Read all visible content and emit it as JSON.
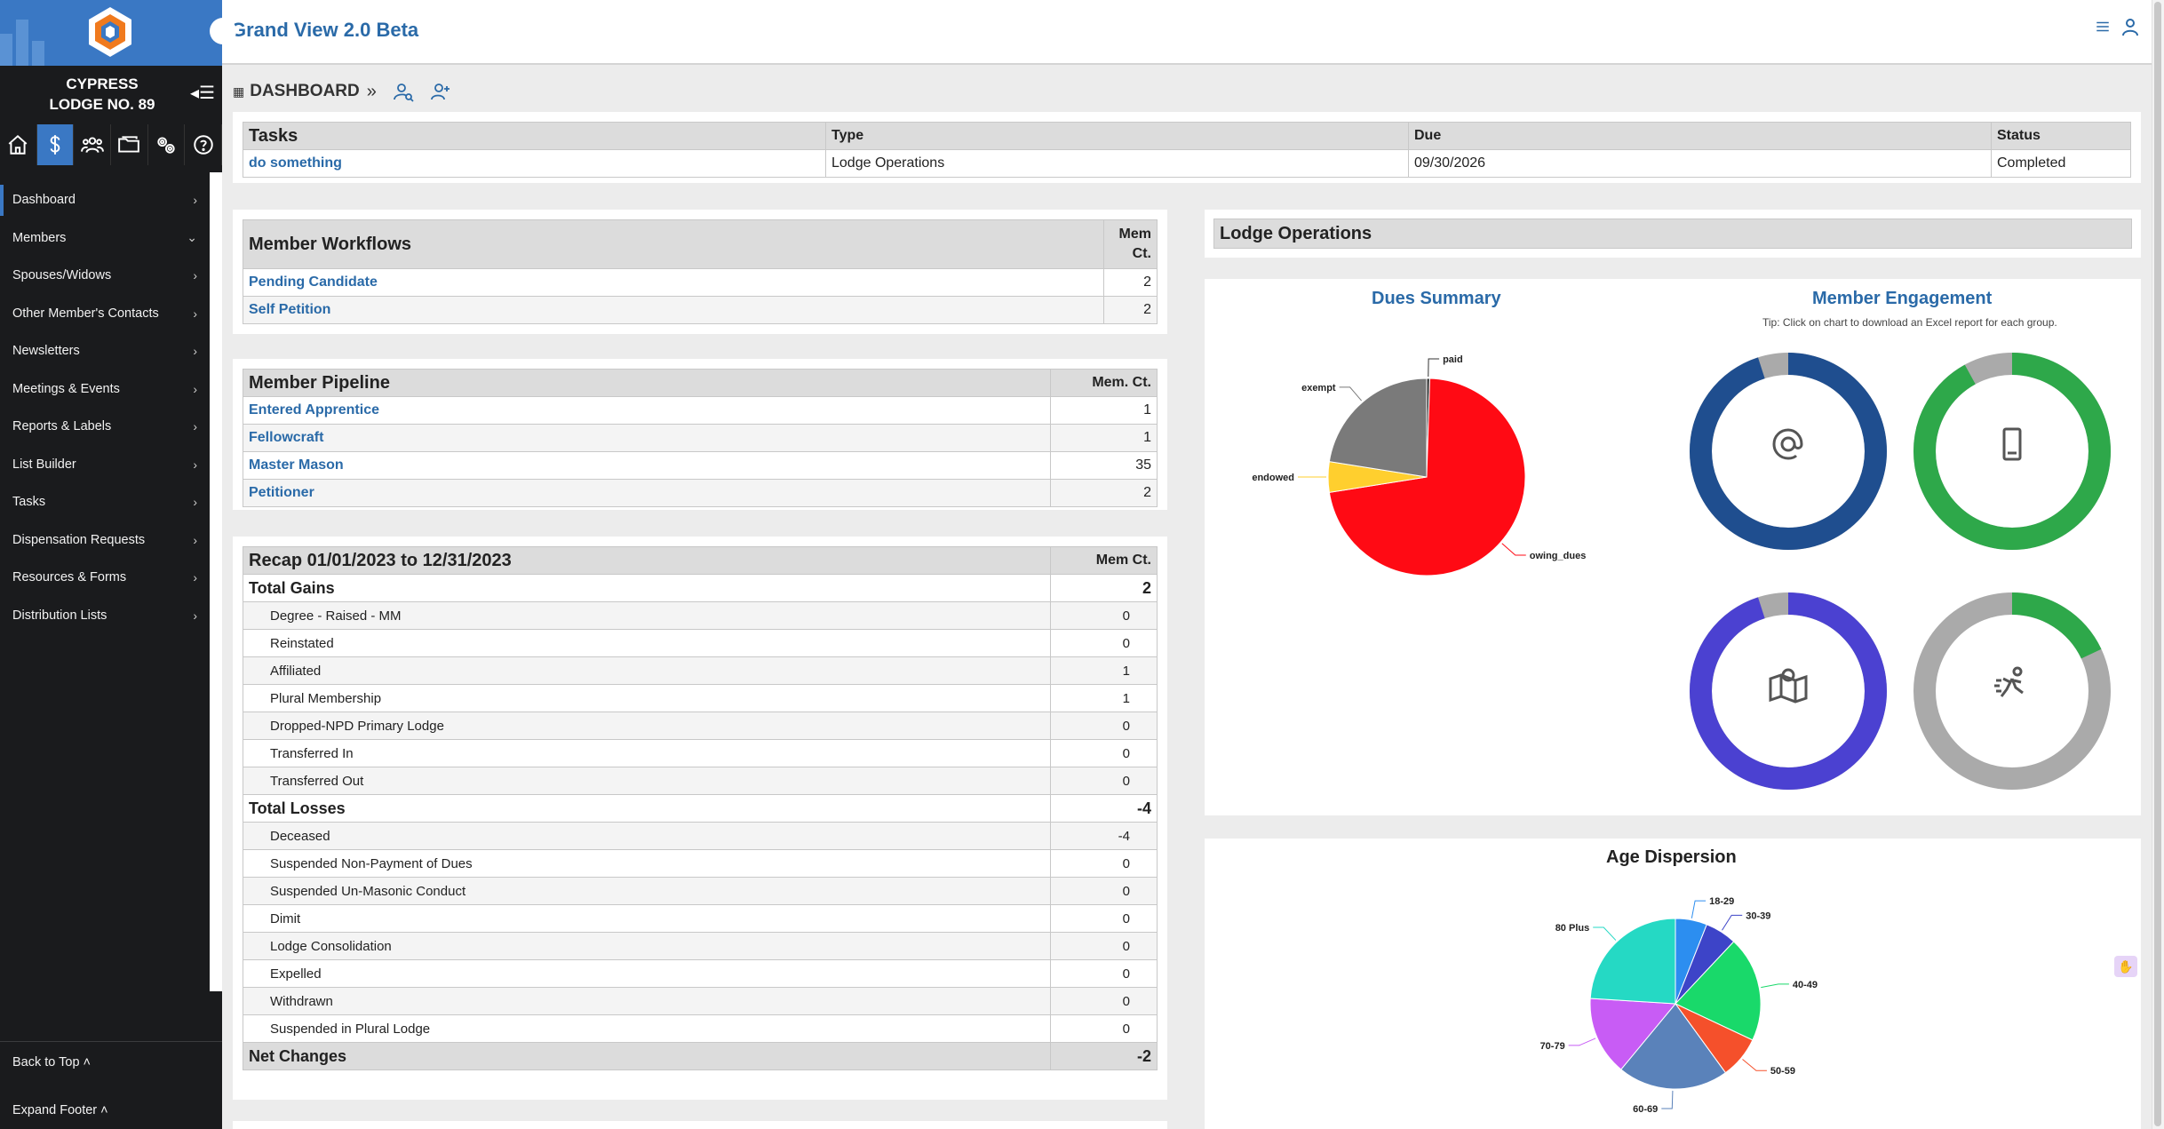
{
  "sidebar": {
    "lodge_name_line1": "CYPRESS",
    "lodge_name_line2": "LODGE NO. 89",
    "icons": [
      "home-icon",
      "dollar-icon",
      "members-icon",
      "folder-icon",
      "settings-icon",
      "help-icon"
    ],
    "nav": [
      {
        "label": "Dashboard",
        "chevron": "›"
      },
      {
        "label": "Members",
        "chevron": "⌄"
      },
      {
        "label": "Spouses/Widows",
        "chevron": "›"
      },
      {
        "label": "Other Member's Contacts",
        "chevron": "›"
      },
      {
        "label": "Newsletters",
        "chevron": "›"
      },
      {
        "label": "Meetings & Events",
        "chevron": "›"
      },
      {
        "label": "Reports & Labels",
        "chevron": "›"
      },
      {
        "label": "List Builder",
        "chevron": "›"
      },
      {
        "label": "Tasks",
        "chevron": "›"
      },
      {
        "label": "Dispensation Requests",
        "chevron": "›"
      },
      {
        "label": "Resources & Forms",
        "chevron": "›"
      },
      {
        "label": "Distribution Lists",
        "chevron": "›"
      }
    ],
    "back_to_top": "Back to Top ˄",
    "expand_footer": "Expand Footer ˄"
  },
  "header": {
    "title": "Grand View 2.0 Beta"
  },
  "breadcrumb": {
    "label": "DASHBOARD",
    "sep": "»"
  },
  "tasks": {
    "headers": {
      "title": "Tasks",
      "type": "Type",
      "due": "Due",
      "status": "Status"
    },
    "rows": [
      {
        "title": "do something",
        "type": "Lodge Operations",
        "due": "09/30/2026",
        "status": "Completed"
      }
    ]
  },
  "workflows": {
    "title": "Member Workflows",
    "count_header_1": "Mem",
    "count_header_2": "Ct.",
    "rows": [
      {
        "label": "Pending Candidate",
        "count": "2"
      },
      {
        "label": "Self Petition",
        "count": "2"
      }
    ]
  },
  "pipeline": {
    "title": "Member Pipeline",
    "count_header": "Mem. Ct.",
    "rows": [
      {
        "label": "Entered Apprentice",
        "count": "1"
      },
      {
        "label": "Fellowcraft",
        "count": "1"
      },
      {
        "label": "Master Mason",
        "count": "35"
      },
      {
        "label": "Petitioner",
        "count": "2"
      }
    ]
  },
  "recap": {
    "title": "Recap 01/01/2023 to 12/31/2023",
    "count_header": "Mem Ct.",
    "total_gains": {
      "label": "Total Gains",
      "value": "2"
    },
    "gains": [
      {
        "label": "Degree - Raised - MM",
        "value": "0"
      },
      {
        "label": "Reinstated",
        "value": "0"
      },
      {
        "label": "Affiliated",
        "value": "1"
      },
      {
        "label": "Plural Membership",
        "value": "1"
      },
      {
        "label": "Dropped-NPD Primary Lodge",
        "value": "0"
      },
      {
        "label": "Transferred In",
        "value": "0"
      },
      {
        "label": "Transferred Out",
        "value": "0"
      }
    ],
    "total_losses": {
      "label": "Total Losses",
      "value": "-4"
    },
    "losses": [
      {
        "label": "Deceased",
        "value": "-4"
      },
      {
        "label": "Suspended Non-Payment of Dues",
        "value": "0"
      },
      {
        "label": "Suspended Un-Masonic Conduct",
        "value": "0"
      },
      {
        "label": "Dimit",
        "value": "0"
      },
      {
        "label": "Lodge Consolidation",
        "value": "0"
      },
      {
        "label": "Expelled",
        "value": "0"
      },
      {
        "label": "Withdrawn",
        "value": "0"
      },
      {
        "label": "Suspended in Plural Lodge",
        "value": "0"
      }
    ],
    "net_changes": {
      "label": "Net Changes",
      "value": "-2"
    }
  },
  "lodge_ops": {
    "title": "Lodge Operations"
  },
  "engagement": {
    "title": "Member Engagement",
    "tip": "Tip: Click on chart to download an Excel report for each group.",
    "donuts": [
      {
        "icon": "at-sign-icon",
        "fraction": 0.95,
        "color": "#1f4e8f",
        "rest": "#aaaaaa"
      },
      {
        "icon": "phone-icon",
        "fraction": 0.92,
        "color": "#2ea84a",
        "rest": "#aaaaaa"
      },
      {
        "icon": "map-pin-icon",
        "fraction": 0.95,
        "color": "#4b41d1",
        "rest": "#aaaaaa"
      },
      {
        "icon": "running-person-icon",
        "fraction": 0.18,
        "color": "#2ea84a",
        "rest": "#aaaaaa"
      }
    ]
  },
  "chart_data": [
    {
      "type": "pie",
      "title": "Dues Summary",
      "labels": [
        "paid",
        "owing_dues",
        "endowed",
        "exempt"
      ],
      "values": [
        0.5,
        72,
        5,
        22.5
      ],
      "colors": [
        "#333333",
        "#ff0a14",
        "#ffcf2e",
        "#7a7a7a"
      ]
    },
    {
      "type": "pie",
      "title": "Age Dispersion",
      "labels": [
        "18-29",
        "30-39",
        "40-49",
        "50-59",
        "60-69",
        "70-79",
        "80 Plus"
      ],
      "values": [
        6,
        6,
        20,
        8,
        21,
        15,
        24
      ],
      "colors": [
        "#2c8ef0",
        "#3d44c8",
        "#19d96a",
        "#f5502b",
        "#5a82ba",
        "#c85cf5",
        "#25d9c4"
      ]
    }
  ]
}
